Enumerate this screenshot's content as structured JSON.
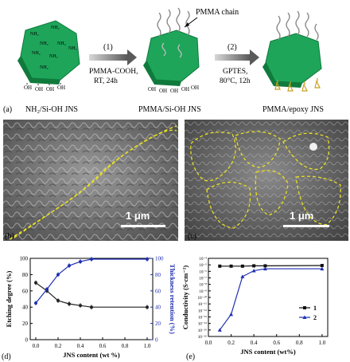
{
  "scheme": {
    "panel_label": "(a)",
    "step1_number": "(1)",
    "step1_reagent": "PMMA-COOH,",
    "step1_conditions": "RT, 24h",
    "step2_number": "(2)",
    "step2_reagent": "GPTES,",
    "step2_conditions": "80°C, 12h",
    "chain_annotation": "PMMA chain",
    "product1_caption": "NH₂/Si-OH JNS",
    "product2_caption": "PMMA/Si-OH JNS",
    "product3_caption": "PMMA/epoxy JNS",
    "nh2_label": "NH₂",
    "oh_label": "OH",
    "colors": {
      "sheet": "#1ea55a",
      "sheet_dark": "#0f7a3c",
      "sheet_light": "#5cd08a",
      "epoxy": "#c8a020"
    }
  },
  "micrographs": [
    {
      "panel_label": "(b)",
      "scale_bar": "1 μm"
    },
    {
      "panel_label": "(c)",
      "scale_bar": "1 μm"
    }
  ],
  "chart_data": [
    {
      "panel_label": "(d)",
      "type": "line",
      "xlabel": "JNS content (wt %)",
      "ylabel": "Etching degree (%)",
      "y2label": "Thickness retention (%)",
      "xlim": [
        -0.05,
        1.05
      ],
      "ylim": [
        0,
        100
      ],
      "y2lim": [
        0,
        100
      ],
      "xticks": [
        "0.0",
        "0.2",
        "0.4",
        "0.6",
        "0.8",
        "1.0"
      ],
      "yticks": [
        "0",
        "20",
        "40",
        "60",
        "80",
        "100"
      ],
      "y2ticks": [
        "0",
        "20",
        "40",
        "60",
        "80",
        "100"
      ],
      "series": [
        {
          "axis": "left",
          "color": "#222222",
          "x": [
            0.0,
            0.1,
            0.2,
            0.3,
            0.4,
            0.5,
            1.0
          ],
          "y": [
            70,
            60,
            48,
            44,
            42,
            40,
            40
          ]
        },
        {
          "axis": "right",
          "color": "#1f2fb0",
          "x": [
            0.0,
            0.1,
            0.2,
            0.3,
            0.4,
            0.5,
            1.0
          ],
          "y": [
            45,
            62,
            80,
            91,
            96,
            99,
            99
          ]
        }
      ]
    },
    {
      "panel_label": "(e)",
      "type": "line",
      "xlabel": "JNS content (wt%)",
      "ylabel": "Conductivity (S·cm⁻¹)",
      "xlim": [
        0.0,
        1.05
      ],
      "yscale": "log",
      "ylim_exp": [
        -16,
        -4
      ],
      "xticks": [
        "0.0",
        "0.2",
        "0.4",
        "0.6",
        "0.8",
        "1.0"
      ],
      "yticks": [
        "10⁻¹⁶",
        "10⁻¹⁵",
        "10⁻¹⁴",
        "10⁻¹³",
        "10⁻¹²",
        "10⁻¹¹",
        "10⁻¹⁰",
        "10⁻⁹",
        "10⁻⁸",
        "10⁻⁷",
        "10⁻⁶",
        "10⁻⁵",
        "10⁻⁴"
      ],
      "legend": {
        "position": "right",
        "entries": [
          "1",
          "2"
        ]
      },
      "series": [
        {
          "name": "1",
          "color": "#111111",
          "marker": "square",
          "x": [
            0.1,
            0.2,
            0.3,
            0.4,
            0.5,
            1.0
          ],
          "y_exp": [
            -5.2,
            -5.2,
            -5.2,
            -5.15,
            -5.15,
            -5.1
          ]
        },
        {
          "name": "2",
          "color": "#1f2fb0",
          "marker": "triangle",
          "x": [
            0.1,
            0.2,
            0.3,
            0.4,
            0.5,
            1.0
          ],
          "y_exp": [
            -15,
            -12.6,
            -6.8,
            -5.9,
            -5.6,
            -5.6
          ]
        }
      ]
    }
  ]
}
